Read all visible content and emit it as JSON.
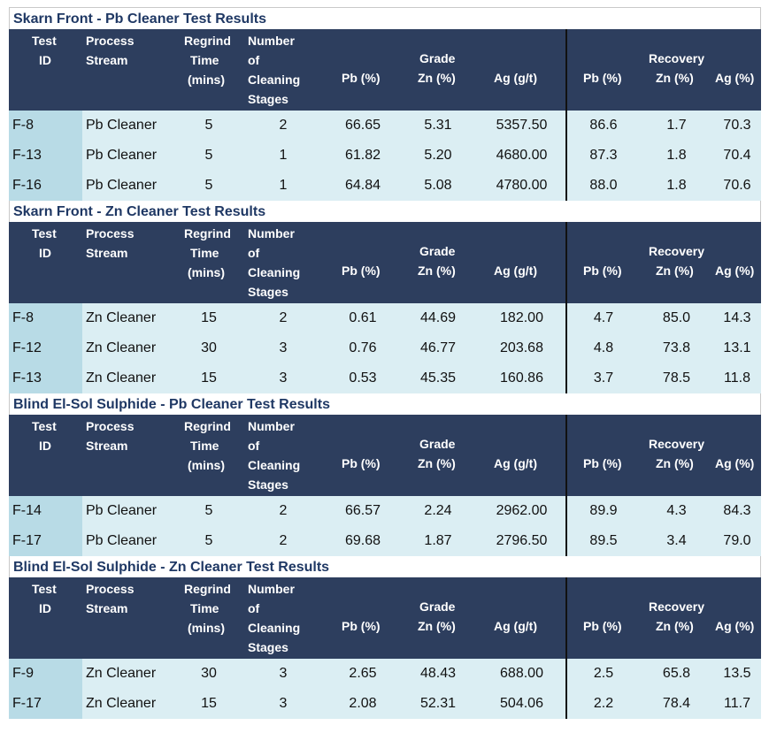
{
  "headers": {
    "test_id": [
      "Test",
      "ID"
    ],
    "process_stream": [
      "Process",
      "Stream"
    ],
    "regrind_time": [
      "Regrind",
      "Time",
      "(mins)"
    ],
    "cleaning_stages": [
      "Number",
      "of",
      "Cleaning",
      "Stages"
    ],
    "grade_group": "Grade",
    "recovery_group": "Recovery",
    "pb": "Pb (%)",
    "zn": "Zn (%)",
    "ag": "Ag (g/t)",
    "pb_rec": "Pb (%)",
    "zn_rec": "Zn (%)",
    "ag_rec": "Ag (%)"
  },
  "sections": [
    {
      "title": "Skarn Front - Pb Cleaner Test Results",
      "rows": [
        [
          "F-8",
          "Pb Cleaner",
          "5",
          "2",
          "66.65",
          "5.31",
          "5357.50",
          "86.6",
          "1.7",
          "70.3"
        ],
        [
          "F-13",
          "Pb Cleaner",
          "5",
          "1",
          "61.82",
          "5.20",
          "4680.00",
          "87.3",
          "1.8",
          "70.4"
        ],
        [
          "F-16",
          "Pb Cleaner",
          "5",
          "1",
          "64.84",
          "5.08",
          "4780.00",
          "88.0",
          "1.8",
          "70.6"
        ]
      ]
    },
    {
      "title": "Skarn Front - Zn Cleaner Test Results",
      "rows": [
        [
          "F-8",
          "Zn Cleaner",
          "15",
          "2",
          "0.61",
          "44.69",
          "182.00",
          "4.7",
          "85.0",
          "14.3"
        ],
        [
          "F-12",
          "Zn Cleaner",
          "30",
          "3",
          "0.76",
          "46.77",
          "203.68",
          "4.8",
          "73.8",
          "13.1"
        ],
        [
          "F-13",
          "Zn Cleaner",
          "15",
          "3",
          "0.53",
          "45.35",
          "160.86",
          "3.7",
          "78.5",
          "11.8"
        ]
      ]
    },
    {
      "title": "Blind El-Sol Sulphide - Pb Cleaner Test Results",
      "rows": [
        [
          "F-14",
          "Pb Cleaner",
          "5",
          "2",
          "66.57",
          "2.24",
          "2962.00",
          "89.9",
          "4.3",
          "84.3"
        ],
        [
          "F-17",
          "Pb Cleaner",
          "5",
          "2",
          "69.68",
          "1.87",
          "2796.50",
          "89.5",
          "3.4",
          "79.0"
        ]
      ]
    },
    {
      "title": "Blind El-Sol Sulphide - Zn Cleaner Test Results",
      "rows": [
        [
          "F-9",
          "Zn Cleaner",
          "30",
          "3",
          "2.65",
          "48.43",
          "688.00",
          "2.5",
          "65.8",
          "13.5"
        ],
        [
          "F-17",
          "Zn Cleaner",
          "15",
          "3",
          "2.08",
          "52.31",
          "504.06",
          "2.2",
          "78.4",
          "11.7"
        ]
      ]
    }
  ]
}
